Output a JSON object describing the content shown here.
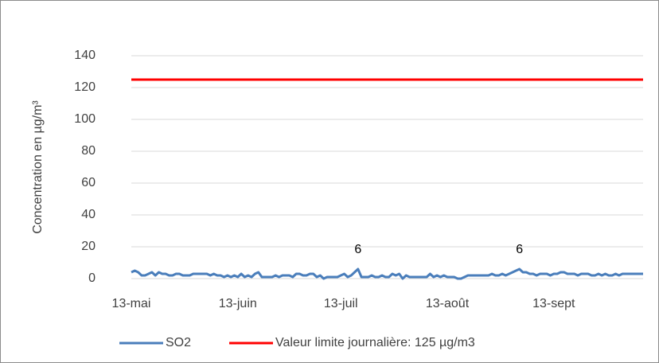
{
  "chart_data": {
    "type": "line",
    "y_label": "Concentration en µg/m³",
    "ylim": [
      0,
      140
    ],
    "yticks": [
      0,
      20,
      40,
      60,
      80,
      100,
      120,
      140
    ],
    "grid": true,
    "categories": [
      "13-mai",
      null,
      null,
      null,
      null,
      null,
      null,
      null,
      null,
      null,
      null,
      null,
      null,
      null,
      null,
      null,
      null,
      null,
      null,
      null,
      null,
      null,
      null,
      null,
      null,
      null,
      null,
      null,
      null,
      null,
      null,
      "13-juin",
      null,
      null,
      null,
      null,
      null,
      null,
      null,
      null,
      null,
      null,
      null,
      null,
      null,
      null,
      null,
      null,
      null,
      null,
      null,
      null,
      null,
      null,
      null,
      null,
      null,
      null,
      null,
      null,
      null,
      "13-juil",
      null,
      null,
      null,
      null,
      null,
      null,
      null,
      null,
      null,
      null,
      null,
      null,
      null,
      null,
      null,
      null,
      null,
      null,
      null,
      null,
      null,
      null,
      null,
      null,
      null,
      null,
      null,
      null,
      null,
      null,
      "13-août",
      null,
      null,
      null,
      null,
      null,
      null,
      null,
      null,
      null,
      null,
      null,
      null,
      null,
      null,
      null,
      null,
      null,
      null,
      null,
      null,
      null,
      null,
      null,
      null,
      null,
      null,
      null,
      null,
      null,
      null,
      "13-sept",
      null,
      null,
      null,
      null,
      null,
      null,
      null,
      null,
      null,
      null,
      null,
      null,
      null,
      null,
      null,
      null,
      null,
      null,
      null,
      null,
      null,
      null,
      null,
      null,
      null,
      null
    ],
    "series": [
      {
        "name": "SO2",
        "color": "#4a7ebb",
        "values": [
          4,
          5,
          4,
          2,
          2,
          3,
          4,
          2,
          4,
          3,
          3,
          2,
          2,
          3,
          3,
          2,
          2,
          2,
          3,
          3,
          3,
          3,
          3,
          2,
          3,
          2,
          2,
          1,
          2,
          1,
          2,
          1,
          3,
          1,
          2,
          1,
          3,
          4,
          1,
          1,
          1,
          1,
          2,
          1,
          2,
          2,
          2,
          1,
          3,
          3,
          2,
          2,
          3,
          3,
          1,
          2,
          0,
          1,
          1,
          1,
          1,
          2,
          3,
          1,
          2,
          4,
          6,
          1,
          1,
          1,
          2,
          1,
          1,
          2,
          1,
          1,
          3,
          2,
          3,
          0,
          2,
          1,
          1,
          1,
          1,
          1,
          1,
          3,
          1,
          2,
          1,
          2,
          1,
          1,
          1,
          0,
          0,
          1,
          2,
          2,
          2,
          2,
          2,
          2,
          2,
          3,
          2,
          2,
          3,
          2,
          3,
          4,
          5,
          6,
          4,
          4,
          3,
          3,
          2,
          3,
          3,
          3,
          2,
          3,
          3,
          4,
          4,
          3,
          3,
          3,
          2,
          3,
          3,
          3,
          2,
          2,
          3,
          2,
          3,
          2,
          2,
          3,
          2,
          3,
          3,
          3,
          3,
          3,
          3,
          3
        ],
        "value_labels": [
          null,
          null,
          null,
          null,
          null,
          null,
          null,
          null,
          null,
          null,
          null,
          null,
          null,
          null,
          null,
          null,
          null,
          null,
          null,
          null,
          null,
          null,
          null,
          null,
          null,
          null,
          null,
          null,
          null,
          null,
          null,
          null,
          null,
          null,
          null,
          null,
          null,
          null,
          null,
          null,
          null,
          null,
          null,
          null,
          null,
          null,
          null,
          null,
          null,
          null,
          null,
          null,
          null,
          null,
          null,
          null,
          null,
          null,
          null,
          null,
          null,
          null,
          null,
          null,
          null,
          null,
          "6",
          null,
          null,
          null,
          null,
          null,
          null,
          null,
          null,
          null,
          null,
          null,
          null,
          null,
          null,
          null,
          null,
          null,
          null,
          null,
          null,
          null,
          null,
          null,
          null,
          null,
          null,
          null,
          null,
          null,
          null,
          null,
          null,
          null,
          null,
          null,
          null,
          null,
          null,
          null,
          null,
          null,
          null,
          null,
          null,
          null,
          null,
          "6",
          null,
          null,
          null,
          null,
          null,
          null,
          null,
          null,
          null,
          null,
          null,
          null,
          null,
          null,
          null,
          null,
          null,
          null,
          null,
          null,
          null,
          null,
          null,
          null,
          null,
          null,
          null,
          null,
          null,
          null,
          null,
          null,
          null,
          null,
          null,
          null
        ]
      },
      {
        "name": "Valeur limite journalière: 125 µg/m3",
        "color": "#ff0000",
        "values": [
          125,
          125,
          125,
          125,
          125,
          125,
          125,
          125,
          125,
          125,
          125,
          125,
          125,
          125,
          125,
          125,
          125,
          125,
          125,
          125,
          125,
          125,
          125,
          125,
          125,
          125,
          125,
          125,
          125,
          125,
          125,
          125,
          125,
          125,
          125,
          125,
          125,
          125,
          125,
          125,
          125,
          125,
          125,
          125,
          125,
          125,
          125,
          125,
          125,
          125,
          125,
          125,
          125,
          125,
          125,
          125,
          125,
          125,
          125,
          125,
          125,
          125,
          125,
          125,
          125,
          125,
          125,
          125,
          125,
          125,
          125,
          125,
          125,
          125,
          125,
          125,
          125,
          125,
          125,
          125,
          125,
          125,
          125,
          125,
          125,
          125,
          125,
          125,
          125,
          125,
          125,
          125,
          125,
          125,
          125,
          125,
          125,
          125,
          125,
          125,
          125,
          125,
          125,
          125,
          125,
          125,
          125,
          125,
          125,
          125,
          125,
          125,
          125,
          125,
          125,
          125,
          125,
          125,
          125,
          125,
          125,
          125,
          125,
          125,
          125,
          125,
          125,
          125,
          125,
          125,
          125,
          125,
          125,
          125,
          125,
          125,
          125,
          125,
          125,
          125,
          125,
          125,
          125,
          125,
          125,
          125,
          125,
          125,
          125,
          125
        ]
      }
    ]
  }
}
